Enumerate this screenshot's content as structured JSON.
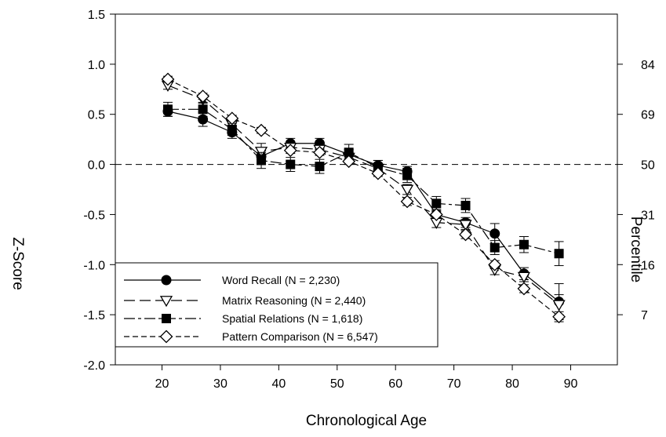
{
  "chart_data": {
    "type": "line",
    "title": "",
    "xlabel": "Chronological Age",
    "ylabel": "Z-Score",
    "y2label": "Percentile",
    "xlim": [
      12,
      98
    ],
    "ylim": [
      -2.0,
      1.5
    ],
    "x_ticks": [
      20,
      30,
      40,
      50,
      60,
      70,
      80,
      90
    ],
    "y_ticks": [
      -2.0,
      -1.5,
      -1.0,
      -0.5,
      0.0,
      0.5,
      1.0,
      1.5
    ],
    "y2_ticks": [
      {
        "z": 1.0,
        "label": "84"
      },
      {
        "z": 0.5,
        "label": "69"
      },
      {
        "z": 0.0,
        "label": "50"
      },
      {
        "z": -0.5,
        "label": "31"
      },
      {
        "z": -1.0,
        "label": "16"
      },
      {
        "z": -1.5,
        "label": "7"
      }
    ],
    "reference_line": 0.0,
    "legend_position": "bottom-left",
    "series": [
      {
        "name": "Word Recall (N = 2,230)",
        "marker": "filled-circle",
        "dash": "solid",
        "x": [
          21,
          27,
          32,
          37,
          42,
          47,
          52,
          57,
          62,
          67,
          72,
          77,
          82,
          88
        ],
        "y": [
          0.53,
          0.45,
          0.32,
          0.08,
          0.21,
          0.21,
          0.1,
          -0.01,
          -0.07,
          -0.5,
          -0.58,
          -0.69,
          -1.09,
          -1.37
        ],
        "err": [
          0.05,
          0.07,
          0.06,
          0.08,
          0.05,
          0.05,
          0.05,
          0.05,
          0.05,
          0.05,
          0.05,
          0.1,
          0.06,
          0.18
        ]
      },
      {
        "name": "Matrix Reasoning (N = 2,440)",
        "marker": "open-triangle-down",
        "dash": "long-dash",
        "x": [
          21,
          27,
          32,
          37,
          42,
          47,
          52,
          57,
          62,
          67,
          72,
          77,
          82,
          88
        ],
        "y": [
          0.79,
          0.65,
          0.4,
          0.13,
          0.17,
          0.15,
          0.07,
          -0.04,
          -0.25,
          -0.58,
          -0.6,
          -1.05,
          -1.12,
          -1.4
        ],
        "err": [
          0.04,
          0.04,
          0.04,
          0.08,
          0.04,
          0.04,
          0.04,
          0.04,
          0.05,
          0.05,
          0.05,
          0.05,
          0.05,
          0.1
        ]
      },
      {
        "name": "Spatial Relations (N = 1,618)",
        "marker": "filled-square",
        "dash": "long-short-dash",
        "x": [
          21,
          27,
          32,
          37,
          42,
          47,
          52,
          57,
          62,
          67,
          72,
          77,
          82,
          88
        ],
        "y": [
          0.55,
          0.55,
          0.35,
          0.04,
          0.0,
          -0.02,
          0.12,
          -0.03,
          -0.11,
          -0.39,
          -0.41,
          -0.83,
          -0.8,
          -0.89
        ],
        "err": [
          0.07,
          0.07,
          0.06,
          0.08,
          0.07,
          0.07,
          0.08,
          0.07,
          0.07,
          0.07,
          0.07,
          0.07,
          0.08,
          0.12
        ]
      },
      {
        "name": "Pattern Comparison (N = 6,547)",
        "marker": "open-diamond",
        "dash": "short-dash",
        "x": [
          21,
          27,
          32,
          37,
          42,
          47,
          52,
          57,
          62,
          67,
          72,
          77,
          82,
          88
        ],
        "y": [
          0.85,
          0.68,
          0.46,
          0.34,
          0.14,
          0.12,
          0.03,
          -0.09,
          -0.37,
          -0.5,
          -0.7,
          -1.0,
          -1.24,
          -1.52
        ],
        "err": [
          0.03,
          0.03,
          0.03,
          0.03,
          0.03,
          0.03,
          0.03,
          0.03,
          0.04,
          0.03,
          0.04,
          0.04,
          0.04,
          0.05
        ]
      }
    ]
  }
}
